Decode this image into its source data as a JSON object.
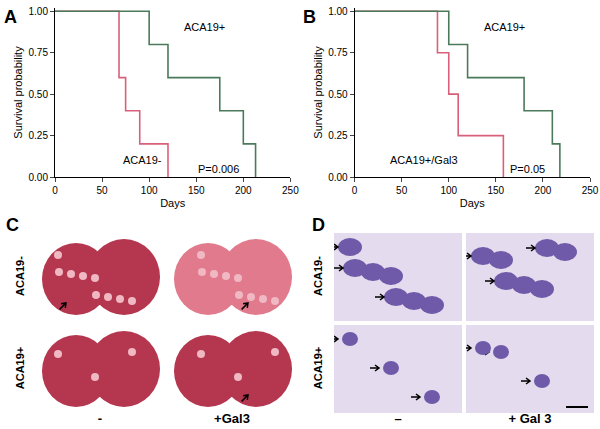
{
  "chart_data": [
    {
      "type": "step",
      "title": "A",
      "x_label": "Days",
      "y_label": "Survival probability",
      "series": [
        {
          "name": "ACA19-",
          "color": "#d9607a",
          "line_style": "solid",
          "x": [
            0,
            68,
            75,
            90,
            120
          ],
          "values": [
            1.0,
            0.6,
            0.4,
            0.2,
            0.0
          ]
        },
        {
          "name": "ACA19+",
          "color": "#4a7a5a",
          "line_style": "solid",
          "x": [
            0,
            100,
            120,
            175,
            200,
            213
          ],
          "values": [
            1.0,
            0.8,
            0.6,
            0.4,
            0.2,
            0.0
          ]
        }
      ],
      "annotations": [
        {
          "text": "P=0.006"
        }
      ],
      "xlim": [
        0,
        250
      ],
      "xticks": [
        0,
        50,
        100,
        150,
        200,
        250
      ],
      "ylim": [
        0,
        1.02
      ],
      "yticks": [
        {
          "value": 0,
          "label": "0.00"
        },
        {
          "value": 0.25,
          "label": "0.25"
        },
        {
          "value": 0.5,
          "label": "0.50"
        },
        {
          "value": 0.75,
          "label": "0.75"
        },
        {
          "value": 1,
          "label": "1.00"
        }
      ],
      "grid": false
    },
    {
      "type": "step",
      "title": "B",
      "x_label": "Days",
      "y_label": "Survival probability",
      "series": [
        {
          "name": "ACA19+/Gal3",
          "color": "#d9607a",
          "line_style": "solid",
          "x": [
            0,
            88,
            100,
            110,
            158
          ],
          "values": [
            1.0,
            0.75,
            0.5,
            0.25,
            0.0
          ]
        },
        {
          "name": "ACA19+",
          "color": "#4a7a5a",
          "line_style": "solid",
          "x": [
            0,
            100,
            120,
            180,
            210,
            218
          ],
          "values": [
            1.0,
            0.8,
            0.6,
            0.4,
            0.2,
            0.0
          ]
        }
      ],
      "annotations": [
        {
          "text": "P=0.05"
        }
      ],
      "xlim": [
        0,
        250
      ],
      "xticks": [
        0,
        50,
        100,
        150,
        200,
        250
      ],
      "ylim": [
        0,
        1.02
      ],
      "yticks": [
        {
          "value": 0,
          "label": "0.00"
        },
        {
          "value": 0.25,
          "label": "0.25"
        },
        {
          "value": 0.5,
          "label": "0.50"
        },
        {
          "value": 0.75,
          "label": "0.75"
        },
        {
          "value": 1,
          "label": "1.00"
        }
      ],
      "grid": false
    }
  ],
  "panels": [
    {
      "label": "C",
      "rows": [
        "ACA19-",
        "ACA19+"
      ],
      "columns": [
        "-",
        "+Gal3"
      ]
    },
    {
      "label": "D",
      "rows": [
        "ACA19-",
        "ACA19+"
      ],
      "columns": [
        "–",
        "+ Gal 3"
      ]
    }
  ]
}
